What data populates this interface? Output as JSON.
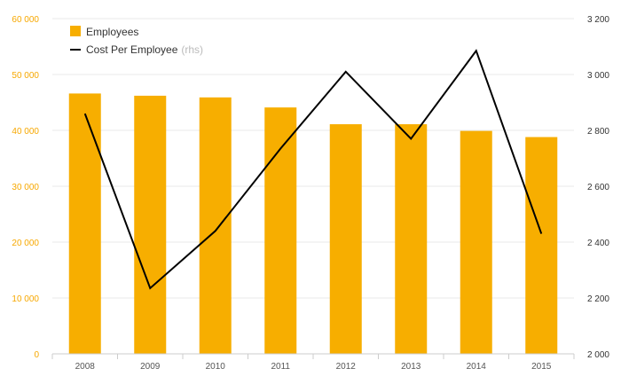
{
  "chart_data": {
    "type": "bar+line",
    "categories": [
      "2008",
      "2009",
      "2010",
      "2011",
      "2012",
      "2013",
      "2014",
      "2015"
    ],
    "series": [
      {
        "name": "Employees",
        "type": "bar",
        "axis": "left",
        "color": "#f7ae00",
        "values": [
          46600,
          46200,
          45900,
          44100,
          41100,
          41100,
          39900,
          38800
        ]
      },
      {
        "name": "Cost Per Employee",
        "name_suffix": "(rhs)",
        "type": "line",
        "axis": "right",
        "color": "#000000",
        "values": [
          2860,
          2235,
          2440,
          2735,
          3010,
          2770,
          3085,
          2430
        ]
      }
    ],
    "y_left": {
      "min": 0,
      "max": 60000,
      "ticks": [
        0,
        10000,
        20000,
        30000,
        40000,
        50000,
        60000
      ],
      "tick_labels": [
        "0",
        "10 000",
        "20 000",
        "30 000",
        "40 000",
        "50 000",
        "60 000"
      ],
      "color": "#f7a800"
    },
    "y_right": {
      "min": 2000,
      "max": 3200,
      "ticks": [
        2000,
        2200,
        2400,
        2600,
        2800,
        3000,
        3200
      ],
      "tick_labels": [
        "2 000",
        "2 200",
        "2 400",
        "2 600",
        "2 800",
        "3 000",
        "3 200"
      ],
      "color": "#333333"
    },
    "grid": true,
    "legend_position": "top-left"
  }
}
